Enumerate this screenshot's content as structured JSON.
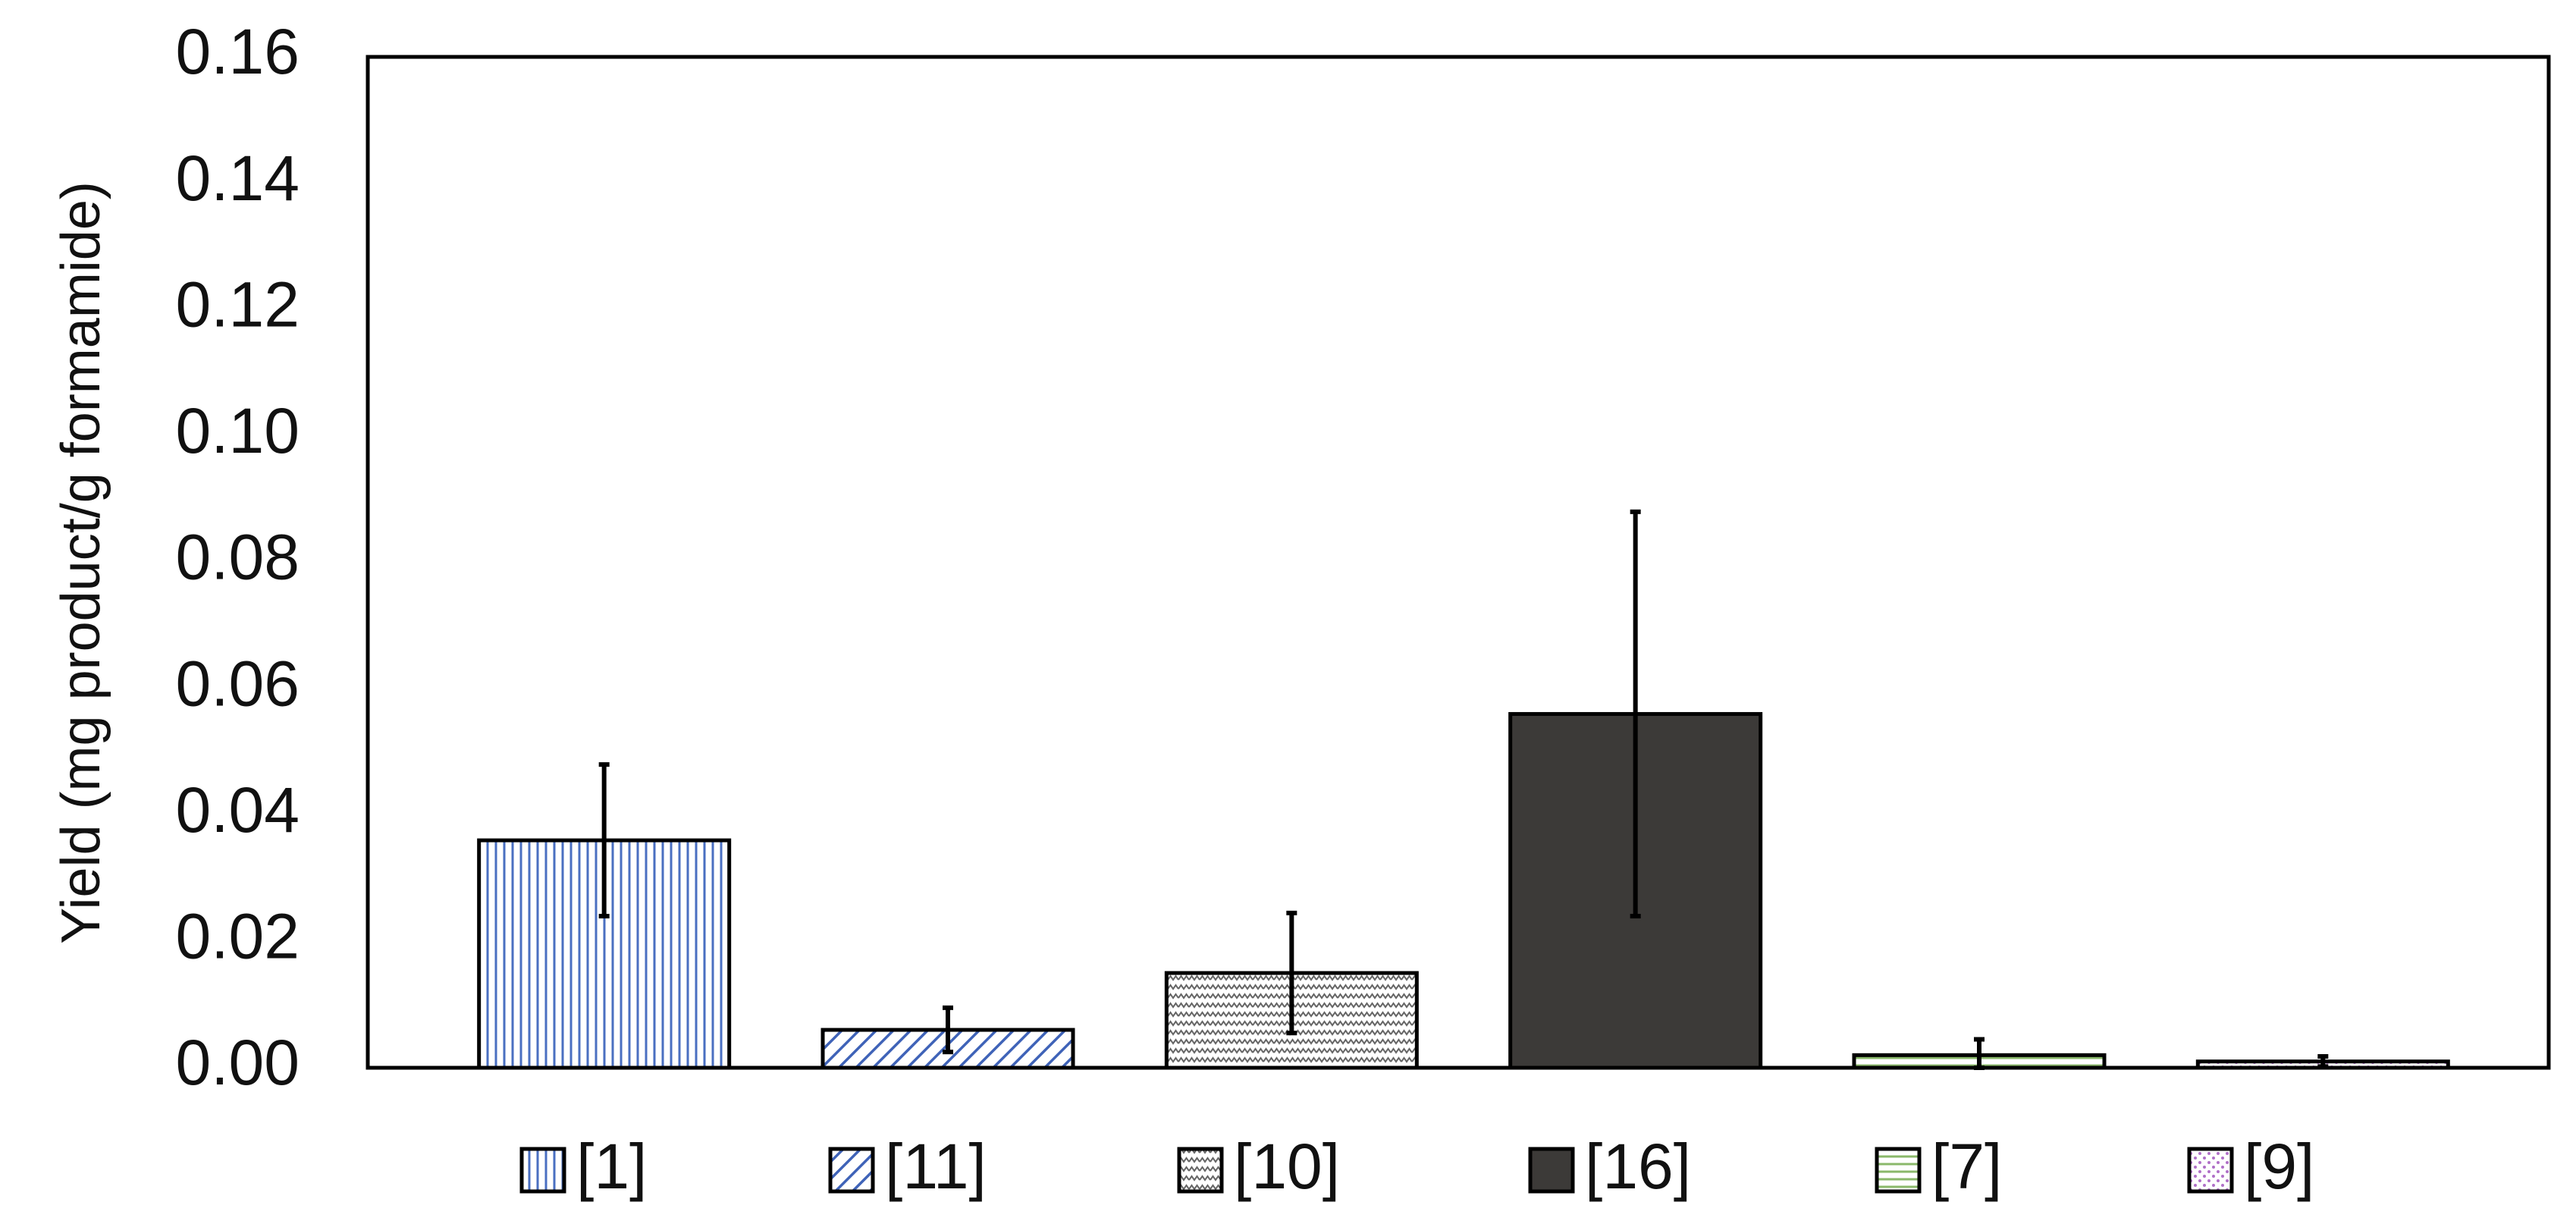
{
  "chart_data": {
    "type": "bar",
    "ylabel": "Yield (mg product/g formamide)",
    "xlabel": "",
    "ylim": [
      0,
      0.16
    ],
    "yticks": [
      "0.00",
      "0.02",
      "0.04",
      "0.06",
      "0.08",
      "0.10",
      "0.12",
      "0.14",
      "0.16"
    ],
    "grid": false,
    "legend_position": "bottom",
    "series": [
      {
        "name": "[1]",
        "value": 0.036,
        "error": 0.012,
        "pattern": "vertical-lines",
        "color": "#4a6fc1",
        "fill": "#ffffff"
      },
      {
        "name": "[11]",
        "value": 0.006,
        "error": 0.0035,
        "pattern": "diagonal-lines",
        "color": "#3f63b8",
        "fill": "#ffffff"
      },
      {
        "name": "[10]",
        "value": 0.015,
        "error": 0.0095,
        "pattern": "zigzag",
        "color": "#666666",
        "fill": "#ffffff"
      },
      {
        "name": "[16]",
        "value": 0.056,
        "error": 0.032,
        "pattern": "solid",
        "color": "#3c3a38",
        "fill": "#3c3a38"
      },
      {
        "name": "[7]",
        "value": 0.002,
        "error": 0.0025,
        "pattern": "horizontal-lines",
        "color": "#8ab86a",
        "fill": "#ffffff"
      },
      {
        "name": "[9]",
        "value": 0.001,
        "error": 0.0008,
        "pattern": "dots",
        "color": "#b070c8",
        "fill": "#ffffff"
      }
    ]
  }
}
